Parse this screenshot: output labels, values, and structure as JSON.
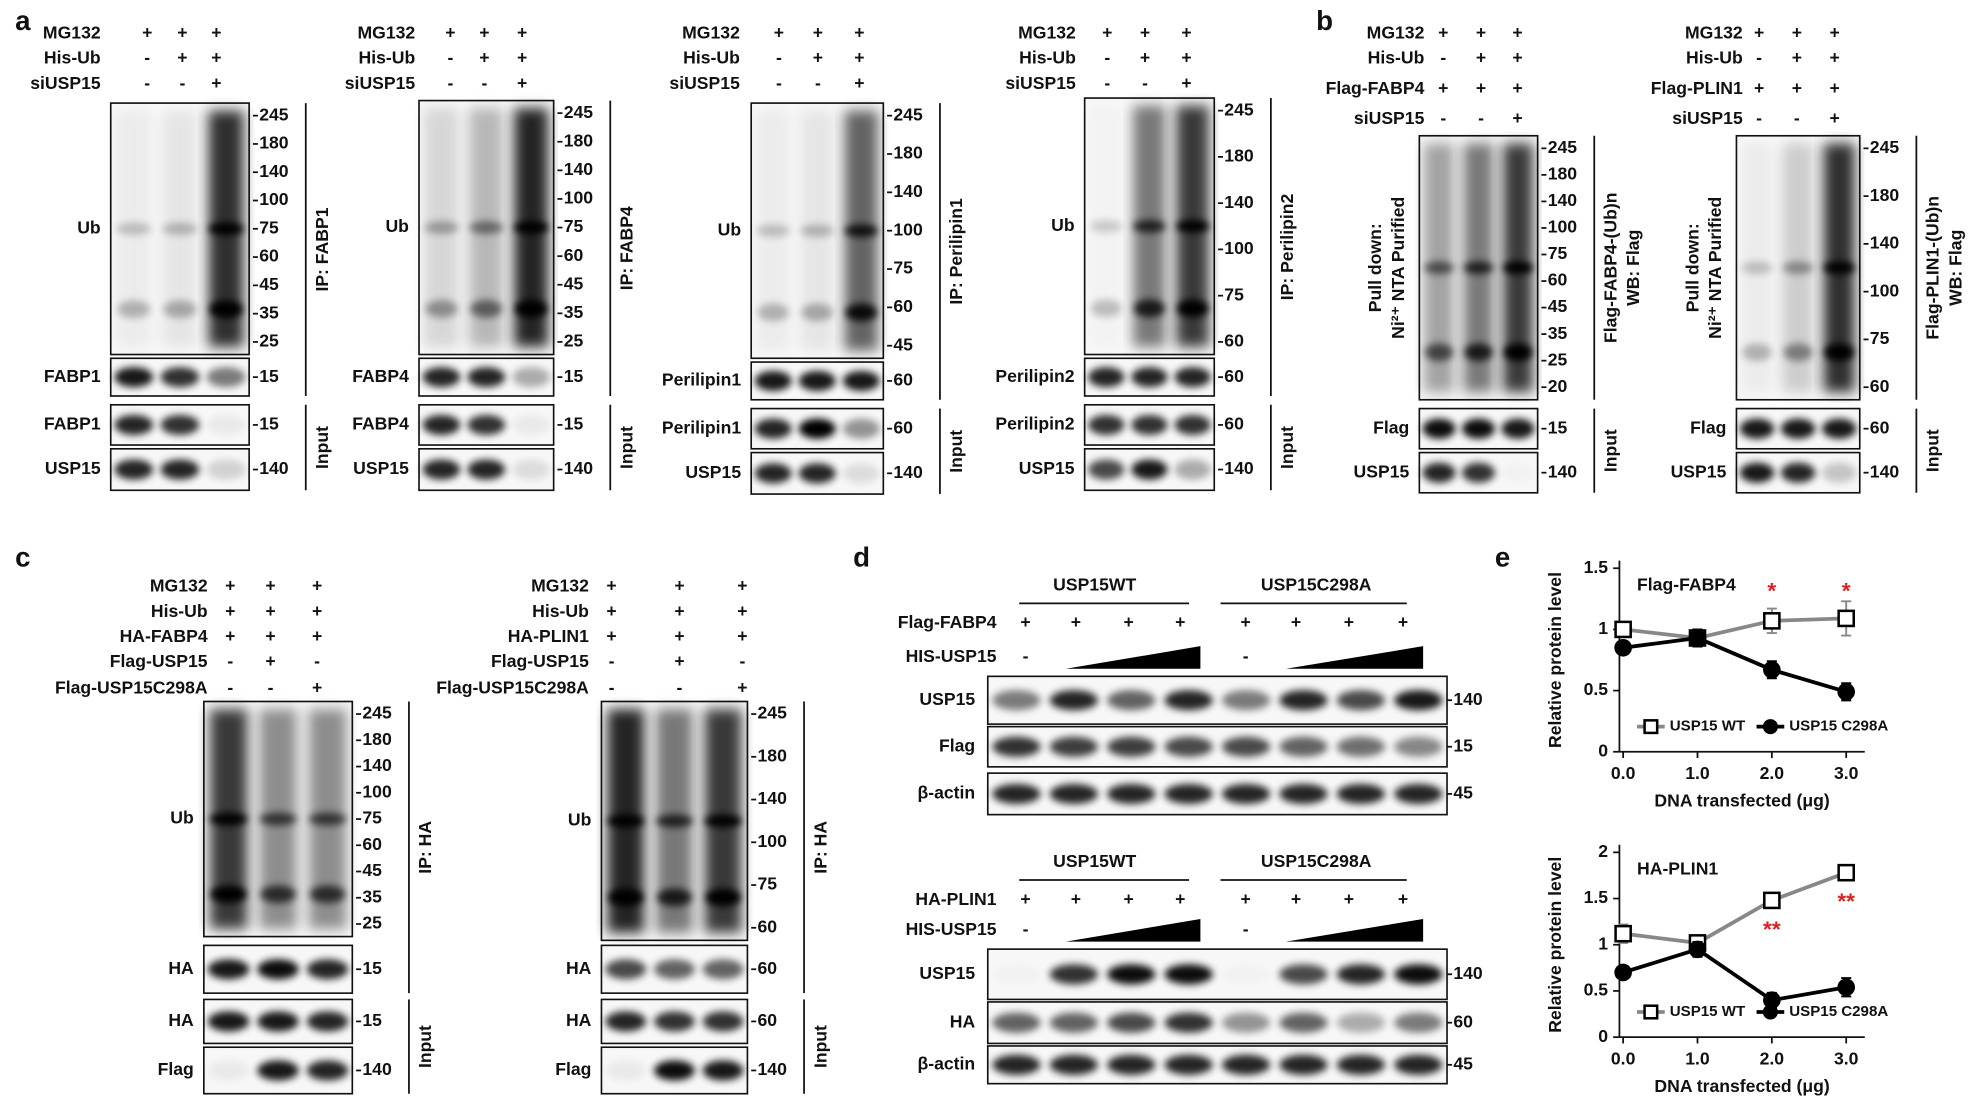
{
  "panel_labels": [
    "a",
    "b",
    "c",
    "d",
    "e"
  ],
  "blots": [
    {
      "conditions": [
        {
          "label": "MG132",
          "marks": [
            "+",
            "+",
            "+"
          ]
        },
        {
          "label": "His-Ub",
          "marks": [
            "-",
            "+",
            "+"
          ]
        },
        {
          "label": "siUSP15",
          "marks": [
            "-",
            "-",
            "+"
          ]
        }
      ],
      "ip": [
        {
          "label": "Ub",
          "markers": [
            245,
            180,
            140,
            100,
            75,
            60,
            45,
            35,
            25
          ]
        },
        {
          "label": "FABP1",
          "markers": [
            15
          ]
        }
      ],
      "ip_label": [
        "IP: FABP1"
      ],
      "input": [
        {
          "label": "FABP1",
          "markers": [
            15
          ]
        },
        {
          "label": "USP15",
          "markers": [
            140
          ]
        }
      ],
      "input_label": "Input"
    },
    {
      "conditions": [
        {
          "label": "MG132",
          "marks": [
            "+",
            "+",
            "+"
          ]
        },
        {
          "label": "His-Ub",
          "marks": [
            "-",
            "+",
            "+"
          ]
        },
        {
          "label": "siUSP15",
          "marks": [
            "-",
            "-",
            "+"
          ]
        }
      ],
      "ip": [
        {
          "label": "Ub",
          "markers": [
            245,
            180,
            140,
            100,
            75,
            60,
            45,
            35,
            25
          ]
        },
        {
          "label": "FABP4",
          "markers": [
            15
          ]
        }
      ],
      "ip_label": [
        "IP: FABP4"
      ],
      "input": [
        {
          "label": "FABP4",
          "markers": [
            15
          ]
        },
        {
          "label": "USP15",
          "markers": [
            140
          ]
        }
      ],
      "input_label": "Input"
    },
    {
      "conditions": [
        {
          "label": "MG132",
          "marks": [
            "+",
            "+",
            "+"
          ]
        },
        {
          "label": "His-Ub",
          "marks": [
            "-",
            "+",
            "+"
          ]
        },
        {
          "label": "siUSP15",
          "marks": [
            "-",
            "-",
            "+"
          ]
        }
      ],
      "ip": [
        {
          "label": "Ub",
          "markers": [
            245,
            180,
            140,
            100,
            75,
            60,
            45
          ]
        },
        {
          "label": "Perilipin1",
          "markers": [
            60
          ]
        }
      ],
      "ip_label": [
        "IP: Perilipin1"
      ],
      "input": [
        {
          "label": "Perilipin1",
          "markers": [
            60
          ]
        },
        {
          "label": "USP15",
          "markers": [
            140
          ]
        }
      ],
      "input_label": "Input"
    },
    {
      "conditions": [
        {
          "label": "MG132",
          "marks": [
            "+",
            "+",
            "+"
          ]
        },
        {
          "label": "His-Ub",
          "marks": [
            "-",
            "+",
            "+"
          ]
        },
        {
          "label": "siUSP15",
          "marks": [
            "-",
            "-",
            "+"
          ]
        }
      ],
      "ip": [
        {
          "label": "Ub",
          "markers": [
            245,
            180,
            140,
            100,
            75,
            60
          ]
        },
        {
          "label": "Perilipin2",
          "markers": [
            60
          ]
        }
      ],
      "ip_label": [
        "IP: Perilipin2"
      ],
      "input": [
        {
          "label": "Perilipin2",
          "markers": [
            60
          ]
        },
        {
          "label": "USP15",
          "markers": [
            140
          ]
        }
      ],
      "input_label": "Input"
    },
    {
      "conditions": [
        {
          "label": "MG132",
          "marks": [
            "+",
            "+",
            "+"
          ]
        },
        {
          "label": "His-Ub",
          "marks": [
            "-",
            "+",
            "+"
          ]
        },
        {
          "label": "Flag-FABP4",
          "marks": [
            "+",
            "+",
            "+"
          ]
        },
        {
          "label": "siUSP15",
          "marks": [
            "-",
            "-",
            "+"
          ]
        }
      ],
      "left_label": [
        "Pull down:",
        "Ni²⁺ NTA Purified"
      ],
      "ip": [
        {
          "markers": [
            245,
            180,
            140,
            100,
            75,
            60,
            45,
            35,
            25,
            20
          ]
        }
      ],
      "ip_label": [
        "Flag-FABP4-(Ub)n",
        "WB: Flag"
      ],
      "input": [
        {
          "label": "Flag",
          "markers": [
            15
          ]
        },
        {
          "label": "USP15",
          "markers": [
            140
          ]
        }
      ],
      "input_label": "Input"
    },
    {
      "conditions": [
        {
          "label": "MG132",
          "marks": [
            "+",
            "+",
            "+"
          ]
        },
        {
          "label": "His-Ub",
          "marks": [
            "-",
            "+",
            "+"
          ]
        },
        {
          "label": "Flag-PLIN1",
          "marks": [
            "+",
            "+",
            "+"
          ]
        },
        {
          "label": "siUSP15",
          "marks": [
            "-",
            "-",
            "+"
          ]
        }
      ],
      "left_label": [
        "Pull down:",
        "Ni²⁺ NTA Purified"
      ],
      "ip": [
        {
          "markers": [
            245,
            180,
            140,
            100,
            75,
            60
          ]
        }
      ],
      "ip_label": [
        "Flag-PLIN1-(Ub)n",
        "WB: Flag"
      ],
      "input": [
        {
          "label": "Flag",
          "markers": [
            60
          ]
        },
        {
          "label": "USP15",
          "markers": [
            140
          ]
        }
      ],
      "input_label": "Input"
    },
    {
      "conditions": [
        {
          "label": "MG132",
          "marks": [
            "+",
            "+",
            "+"
          ]
        },
        {
          "label": "His-Ub",
          "marks": [
            "+",
            "+",
            "+"
          ]
        },
        {
          "label": "HA-FABP4",
          "marks": [
            "+",
            "+",
            "+"
          ]
        },
        {
          "label": "Flag-USP15",
          "marks": [
            "-",
            "+",
            "-"
          ]
        },
        {
          "label": "Flag-USP15C298A",
          "marks": [
            "-",
            "-",
            "+"
          ]
        }
      ],
      "ip": [
        {
          "label": "Ub",
          "markers": [
            245,
            180,
            140,
            100,
            75,
            60,
            45,
            35,
            25
          ]
        },
        {
          "label": "HA",
          "markers": [
            15
          ]
        }
      ],
      "ip_label": [
        "IP: HA"
      ],
      "input": [
        {
          "label": "HA",
          "markers": [
            15
          ]
        },
        {
          "label": "Flag",
          "markers": [
            140
          ]
        }
      ],
      "input_label": "Input"
    },
    {
      "conditions": [
        {
          "label": "MG132",
          "marks": [
            "+",
            "+",
            "+"
          ]
        },
        {
          "label": "His-Ub",
          "marks": [
            "+",
            "+",
            "+"
          ]
        },
        {
          "label": "HA-PLIN1",
          "marks": [
            "+",
            "+",
            "+"
          ]
        },
        {
          "label": "Flag-USP15",
          "marks": [
            "-",
            "+",
            "-"
          ]
        },
        {
          "label": "Flag-USP15C298A",
          "marks": [
            "-",
            "-",
            "+"
          ]
        }
      ],
      "ip": [
        {
          "label": "Ub",
          "markers": [
            245,
            180,
            140,
            100,
            75,
            60
          ]
        },
        {
          "label": "HA",
          "markers": [
            60
          ]
        }
      ],
      "ip_label": [
        "IP: HA"
      ],
      "input": [
        {
          "label": "HA",
          "markers": [
            60
          ]
        },
        {
          "label": "Flag",
          "markers": [
            140
          ]
        }
      ],
      "input_label": "Input"
    }
  ],
  "d": [
    {
      "groups": [
        "USP15WT",
        "USP15C298A"
      ],
      "conditions": [
        {
          "label": "Flag-FABP4",
          "marks": [
            "+",
            "+",
            "+",
            "+",
            "+",
            "+",
            "+",
            "+"
          ]
        },
        {
          "label": "HIS-USP15",
          "marks": [
            "-",
            "-"
          ]
        }
      ],
      "bands": [
        {
          "label": "USP15",
          "markers": [
            140
          ]
        },
        {
          "label": "Flag",
          "markers": [
            15
          ]
        },
        {
          "label": "β-actin",
          "markers": [
            45
          ]
        }
      ]
    },
    {
      "groups": [
        "USP15WT",
        "USP15C298A"
      ],
      "conditions": [
        {
          "label": "HA-PLIN1",
          "marks": [
            "+",
            "+",
            "+",
            "+",
            "+",
            "+",
            "+",
            "+"
          ]
        },
        {
          "label": "HIS-USP15",
          "marks": [
            "-",
            "-"
          ]
        }
      ],
      "bands": [
        {
          "label": "USP15",
          "markers": [
            140
          ]
        },
        {
          "label": "HA",
          "markers": [
            60
          ]
        },
        {
          "label": "β-actin",
          "markers": [
            45
          ]
        }
      ]
    }
  ],
  "chart_data": [
    {
      "type": "line",
      "title": "Flag-FABP4",
      "ylabel": "Relative protein level",
      "xlabel": "DNA transfected (μg)",
      "x": [
        0,
        1,
        2,
        3
      ],
      "xlim": [
        -0.05,
        3.25
      ],
      "xticks": [
        {
          "value": 0,
          "label": "0.0"
        },
        {
          "value": 1,
          "label": "1.0"
        },
        {
          "value": 2,
          "label": "2.0"
        },
        {
          "value": 3,
          "label": "3.0"
        }
      ],
      "ylim": [
        0,
        1.5
      ],
      "yticks": [
        0,
        0.5,
        1,
        1.5
      ],
      "legend": "lower center",
      "series": [
        {
          "name": "USP15 WT",
          "color": "#888888",
          "values": [
            1,
            0.93,
            1.07,
            1.09
          ],
          "errors": [
            0.05,
            0.06,
            0.1,
            0.14
          ]
        },
        {
          "name": "USP15 C298A",
          "color": "#000000",
          "values": [
            0.85,
            0.93,
            0.67,
            0.49
          ],
          "errors": [
            0.05,
            0.07,
            0.07,
            0.07
          ]
        }
      ],
      "annotations": [
        {
          "text": "*",
          "x": 2,
          "y": 1.3,
          "color": "#e02020"
        },
        {
          "text": "*",
          "x": 3,
          "y": 1.3,
          "color": "#e02020"
        }
      ]
    },
    {
      "type": "line",
      "title": "HA-PLIN1",
      "ylabel": "Relative protein level",
      "xlabel": "DNA transfected (μg)",
      "x": [
        0,
        1,
        2,
        3
      ],
      "xlim": [
        -0.05,
        3.25
      ],
      "xticks": [
        {
          "value": 0,
          "label": "0.0"
        },
        {
          "value": 1,
          "label": "1.0"
        },
        {
          "value": 2,
          "label": "2.0"
        },
        {
          "value": 3,
          "label": "3.0"
        }
      ],
      "ylim": [
        0,
        2
      ],
      "yticks": [
        0,
        0.5,
        1,
        1.5,
        2
      ],
      "legend": "lower center",
      "series": [
        {
          "name": "USP15 WT",
          "color": "#888888",
          "values": [
            1.12,
            1.02,
            1.48,
            1.78
          ],
          "errors": [
            0.1,
            0.08,
            0.08,
            0.06
          ]
        },
        {
          "name": "USP15 C298A",
          "color": "#000000",
          "values": [
            0.7,
            0.95,
            0.4,
            0.54
          ],
          "errors": [
            0.06,
            0.08,
            0.08,
            0.1
          ]
        }
      ],
      "annotations": [
        {
          "text": "**",
          "x": 2,
          "y": 1.15,
          "color": "#e02020"
        },
        {
          "text": "**",
          "x": 3,
          "y": 1.45,
          "color": "#e02020"
        }
      ]
    }
  ]
}
